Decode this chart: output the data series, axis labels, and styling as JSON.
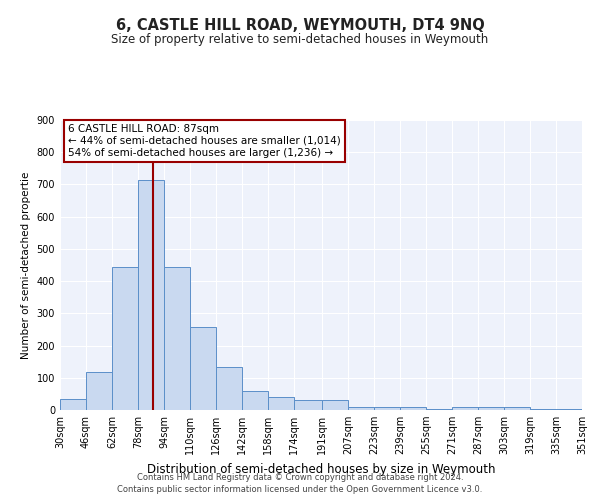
{
  "title": "6, CASTLE HILL ROAD, WEYMOUTH, DT4 9NQ",
  "subtitle": "Size of property relative to semi-detached houses in Weymouth",
  "xlabel": "Distribution of semi-detached houses by size in Weymouth",
  "ylabel": "Number of semi-detached propertie",
  "footnote1": "Contains HM Land Registry data © Crown copyright and database right 2024.",
  "footnote2": "Contains public sector information licensed under the Open Government Licence v3.0.",
  "bins": [
    30,
    46,
    62,
    78,
    94,
    110,
    126,
    142,
    158,
    174,
    191,
    207,
    223,
    239,
    255,
    271,
    287,
    303,
    319,
    335,
    351
  ],
  "counts": [
    35,
    118,
    445,
    714,
    445,
    258,
    135,
    58,
    40,
    32,
    30,
    10,
    8,
    8,
    3,
    10,
    8,
    8,
    3,
    3
  ],
  "property_size": 87,
  "legend_title": "6 CASTLE HILL ROAD: 87sqm",
  "legend_line1": "← 44% of semi-detached houses are smaller (1,014)",
  "legend_line2": "54% of semi-detached houses are larger (1,236) →",
  "bar_facecolor": "#c9d9f0",
  "bar_edgecolor": "#5b8fc9",
  "vline_color": "#990000",
  "background_color": "#eef2fb",
  "grid_color": "#ffffff",
  "ylim": [
    0,
    900
  ],
  "yticks": [
    0,
    100,
    200,
    300,
    400,
    500,
    600,
    700,
    800,
    900
  ],
  "tick_labels": [
    "30sqm",
    "46sqm",
    "62sqm",
    "78sqm",
    "94sqm",
    "110sqm",
    "126sqm",
    "142sqm",
    "158sqm",
    "174sqm",
    "191sqm",
    "207sqm",
    "223sqm",
    "239sqm",
    "255sqm",
    "271sqm",
    "287sqm",
    "303sqm",
    "319sqm",
    "335sqm",
    "351sqm"
  ],
  "title_fontsize": 10.5,
  "subtitle_fontsize": 8.5,
  "xlabel_fontsize": 8.5,
  "ylabel_fontsize": 7.5,
  "tick_fontsize": 7,
  "legend_fontsize": 7.5,
  "footnote_fontsize": 6
}
